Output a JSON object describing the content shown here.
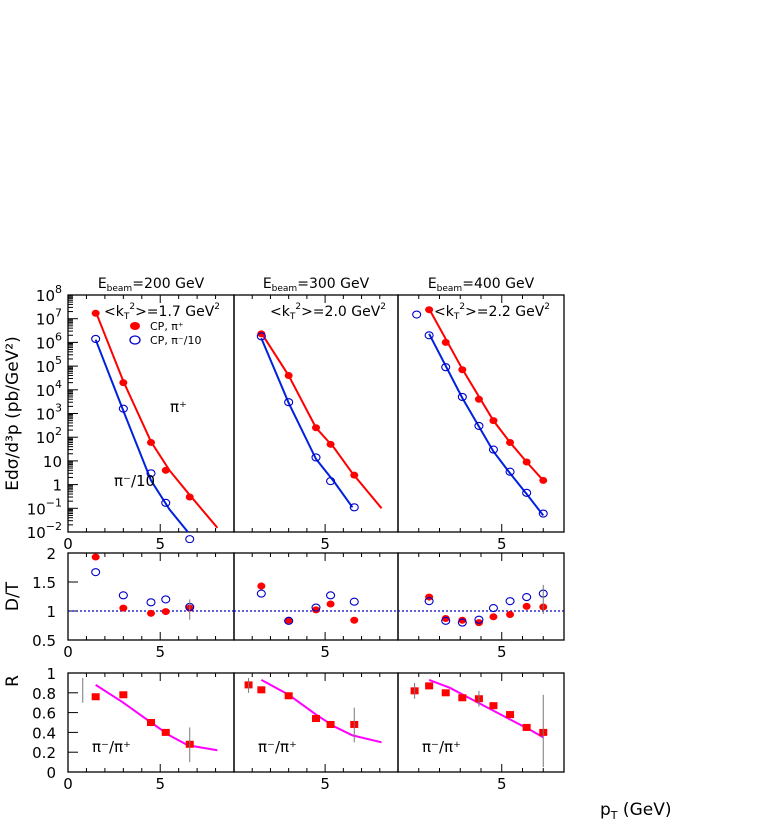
{
  "chart_data": {
    "type": "scatter",
    "x_label": "p",
    "x_label_sub": "T",
    "x_label_unit": " (GeV)",
    "x_ticks": [
      "0",
      "5"
    ],
    "panels": [
      {
        "beam_label_main": "E",
        "beam_label_sub": "beam",
        "beam_label_value": "=200 GeV",
        "kt_label": "<k",
        "kt_sub": "T",
        "kt_sup": "2",
        "kt_value": ">=1.7 GeV",
        "kt_unit_sup": "2",
        "xlim": [
          0,
          9.0
        ]
      },
      {
        "beam_label_main": "E",
        "beam_label_sub": "beam",
        "beam_label_value": "=300 GeV",
        "kt_label": "<k",
        "kt_sub": "T",
        "kt_sup": "2",
        "kt_value": ">=2.0 GeV",
        "kt_unit_sup": "2",
        "xlim": [
          0,
          9.0
        ]
      },
      {
        "beam_label_main": "E",
        "beam_label_sub": "beam",
        "beam_label_value": "=400 GeV",
        "kt_label": "<k",
        "kt_sub": "T",
        "kt_sup": "2",
        "kt_value": ">=2.2 GeV",
        "kt_unit_sup": "2",
        "xlim": [
          0,
          8.0
        ]
      }
    ],
    "top_row": {
      "ylabel": "Edσ/d³p (pb/GeV²)",
      "yscale": "log",
      "ylim": [
        0.01,
        100000000
      ],
      "y_ticks": [
        {
          "base": "10",
          "exp": "8",
          "v": 100000000
        },
        {
          "base": "10",
          "exp": "7",
          "v": 10000000
        },
        {
          "base": "10",
          "exp": "6",
          "v": 1000000
        },
        {
          "base": "10",
          "exp": "5",
          "v": 100000
        },
        {
          "base": "10",
          "exp": "4",
          "v": 10000
        },
        {
          "base": "10",
          "exp": "3",
          "v": 1000
        },
        {
          "base": "10",
          "exp": "2",
          "v": 100
        },
        {
          "base": "10",
          "exp": "",
          "v": 10
        },
        {
          "base": "1",
          "exp": "",
          "v": 1
        },
        {
          "base": "10",
          "exp": "−1",
          "v": 0.1
        },
        {
          "base": "10",
          "exp": "−2",
          "v": 0.01
        }
      ],
      "legend": [
        {
          "label": "CP, π⁺",
          "color": "#ff0000",
          "marker": "filled-circle"
        },
        {
          "label": "CP, π⁻/10",
          "color": "#0000cc",
          "marker": "open-circle"
        }
      ],
      "annotation_pi_plus": "π⁺",
      "annotation_pi_minus": "π⁻/10",
      "series": [
        {
          "name": "CP, π⁺",
          "points": [
            [
              1.5,
              17000000
            ],
            [
              3.0,
              20000
            ],
            [
              4.5,
              60
            ],
            [
              5.3,
              4
            ],
            [
              6.6,
              0.3
            ]
          ],
          "fit": [
            [
              1.5,
              20000000
            ],
            [
              3.0,
              23000
            ],
            [
              4.5,
              65
            ],
            [
              5.5,
              4
            ],
            [
              6.5,
              0.45
            ],
            [
              8.1,
              0.015
            ]
          ],
          "panel": 0
        },
        {
          "name": "CP, π⁻/10",
          "points": [
            [
              1.5,
              1400000
            ],
            [
              3.0,
              1600
            ],
            [
              4.5,
              3.0
            ],
            [
              5.3,
              0.17
            ],
            [
              6.6,
              0.005
            ]
          ],
          "fit": [
            [
              1.5,
              1300000
            ],
            [
              3.0,
              1300
            ],
            [
              4.5,
              1.5
            ],
            [
              5.5,
              0.09
            ],
            [
              6.5,
              0.01
            ]
          ],
          "panel": 0
        },
        {
          "name": "CP, π⁺",
          "points": [
            [
              1.5,
              2300000
            ],
            [
              3.0,
              40000
            ],
            [
              4.5,
              250
            ],
            [
              5.3,
              50
            ],
            [
              6.6,
              2.5
            ]
          ],
          "fit": [
            [
              1.5,
              2500000
            ],
            [
              3.0,
              40000
            ],
            [
              4.5,
              250
            ],
            [
              5.5,
              35
            ],
            [
              6.5,
              3.0
            ],
            [
              8.1,
              0.1
            ]
          ],
          "panel": 1
        },
        {
          "name": "CP, π⁻/10",
          "points": [
            [
              1.5,
              1800000
            ],
            [
              3.0,
              3000
            ],
            [
              4.5,
              14
            ],
            [
              5.3,
              1.4
            ],
            [
              6.6,
              0.11
            ]
          ],
          "fit": [
            [
              1.5,
              1500000
            ],
            [
              3.0,
              2800
            ],
            [
              4.5,
              12
            ],
            [
              5.5,
              1.3
            ],
            [
              6.5,
              0.11
            ]
          ],
          "panel": 1
        },
        {
          "name": "CP, π⁺",
          "points": [
            [
              1.5,
              24000000
            ],
            [
              2.3,
              1000000
            ],
            [
              3.1,
              70000
            ],
            [
              3.9,
              4000
            ],
            [
              4.6,
              500
            ],
            [
              5.4,
              60
            ],
            [
              6.2,
              9
            ],
            [
              7.0,
              1.5
            ]
          ],
          "fit": [
            [
              1.5,
              26000000
            ],
            [
              3.1,
              75000
            ],
            [
              4.6,
              500
            ],
            [
              5.4,
              60
            ],
            [
              6.2,
              9
            ],
            [
              7.0,
              1.5
            ]
          ],
          "panel": 2
        },
        {
          "name": "CP, π⁻/10",
          "points": [
            [
              0.9,
              15000000
            ],
            [
              1.5,
              2000000
            ],
            [
              2.3,
              90000
            ],
            [
              3.1,
              5000
            ],
            [
              3.9,
              300
            ],
            [
              4.6,
              30
            ],
            [
              5.4,
              3.5
            ],
            [
              6.2,
              0.45
            ],
            [
              7.0,
              0.06
            ]
          ],
          "fit": [
            [
              1.5,
              2300000
            ],
            [
              3.1,
              4500
            ],
            [
              4.6,
              25
            ],
            [
              5.4,
              3.0
            ],
            [
              6.2,
              0.4
            ],
            [
              7.0,
              0.05
            ]
          ],
          "panel": 2
        }
      ]
    },
    "middle_row": {
      "ylabel": "D/T",
      "ylim": [
        0.5,
        2.0
      ],
      "y_ticks": [
        "0.5",
        "1",
        "1.5",
        "2"
      ],
      "reference_line": 1,
      "series": [
        {
          "name": "CP, π⁺",
          "panel": 0,
          "points": [
            [
              1.5,
              1.93
            ],
            [
              3.0,
              1.05
            ],
            [
              4.5,
              0.96
            ],
            [
              5.3,
              0.99
            ],
            [
              6.6,
              1.05
            ]
          ]
        },
        {
          "name": "CP, π⁻/10",
          "panel": 0,
          "points": [
            [
              1.5,
              1.67
            ],
            [
              3.0,
              1.27
            ],
            [
              4.5,
              1.15
            ],
            [
              5.3,
              1.2
            ],
            [
              6.6,
              1.07
            ]
          ]
        },
        {
          "name": "CP, π⁺",
          "panel": 1,
          "points": [
            [
              1.5,
              1.43
            ],
            [
              3.0,
              0.84
            ],
            [
              4.5,
              1.02
            ],
            [
              5.3,
              1.12
            ],
            [
              6.6,
              0.84
            ]
          ]
        },
        {
          "name": "CP, π⁻/10",
          "panel": 1,
          "points": [
            [
              1.5,
              1.3
            ],
            [
              3.0,
              0.83
            ],
            [
              4.5,
              1.06
            ],
            [
              5.3,
              1.27
            ],
            [
              6.6,
              1.16
            ]
          ]
        },
        {
          "name": "CP, π⁺",
          "panel": 2,
          "points": [
            [
              1.5,
              1.24
            ],
            [
              2.3,
              0.87
            ],
            [
              3.1,
              0.84
            ],
            [
              3.9,
              0.8
            ],
            [
              4.6,
              0.9
            ],
            [
              5.4,
              0.94
            ],
            [
              6.2,
              1.08
            ],
            [
              7.0,
              1.07
            ]
          ]
        },
        {
          "name": "CP, π⁻/10",
          "panel": 2,
          "points": [
            [
              1.5,
              1.17
            ],
            [
              2.3,
              0.83
            ],
            [
              3.1,
              0.8
            ],
            [
              3.9,
              0.85
            ],
            [
              4.6,
              1.05
            ],
            [
              5.4,
              1.17
            ],
            [
              6.2,
              1.24
            ],
            [
              7.0,
              1.3
            ]
          ]
        }
      ]
    },
    "bottom_row": {
      "ylabel": "R",
      "ylim": [
        0,
        1.0
      ],
      "y_ticks": [
        "0",
        "0.2",
        "0.4",
        "0.6",
        "0.8",
        "1"
      ],
      "panel_label": "π⁻/π⁺",
      "series": [
        {
          "name": "data",
          "panel": 0,
          "points": [
            [
              1.5,
              0.76
            ],
            [
              3.0,
              0.78
            ],
            [
              4.5,
              0.5
            ],
            [
              5.3,
              0.4
            ],
            [
              6.6,
              0.28
            ]
          ]
        },
        {
          "name": "data",
          "panel": 1,
          "points": [
            [
              0.8,
              0.88
            ],
            [
              1.5,
              0.83
            ],
            [
              3.0,
              0.77
            ],
            [
              4.5,
              0.54
            ],
            [
              5.3,
              0.48
            ],
            [
              6.6,
              0.48
            ]
          ]
        },
        {
          "name": "data",
          "panel": 2,
          "points": [
            [
              0.8,
              0.82
            ],
            [
              1.5,
              0.87
            ],
            [
              2.3,
              0.8
            ],
            [
              3.1,
              0.75
            ],
            [
              3.9,
              0.74
            ],
            [
              4.6,
              0.67
            ],
            [
              5.4,
              0.58
            ],
            [
              6.2,
              0.45
            ],
            [
              7.0,
              0.4
            ]
          ]
        }
      ],
      "curves": [
        {
          "panel": 0,
          "points": [
            [
              1.5,
              0.88
            ],
            [
              3.0,
              0.7
            ],
            [
              4.5,
              0.5
            ],
            [
              5.5,
              0.37
            ],
            [
              6.5,
              0.27
            ],
            [
              8.1,
              0.22
            ]
          ]
        },
        {
          "panel": 1,
          "points": [
            [
              1.5,
              0.93
            ],
            [
              3.0,
              0.78
            ],
            [
              4.5,
              0.58
            ],
            [
              5.5,
              0.46
            ],
            [
              6.5,
              0.37
            ],
            [
              8.1,
              0.3
            ]
          ]
        },
        {
          "panel": 2,
          "points": [
            [
              1.5,
              0.93
            ],
            [
              2.5,
              0.85
            ],
            [
              3.5,
              0.74
            ],
            [
              4.5,
              0.63
            ],
            [
              5.5,
              0.52
            ],
            [
              6.5,
              0.41
            ],
            [
              7.0,
              0.35
            ]
          ]
        }
      ]
    }
  }
}
